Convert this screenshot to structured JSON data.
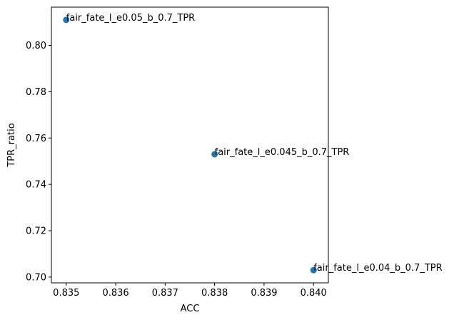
{
  "chart_data": {
    "type": "scatter",
    "title": "",
    "xlabel": "ACC",
    "ylabel": "TPR_ratio",
    "xlim": [
      0.8347,
      0.8403
    ],
    "ylim": [
      0.6975,
      0.8165
    ],
    "x_ticks": [
      0.835,
      0.836,
      0.837,
      0.838,
      0.839,
      0.84
    ],
    "x_tick_labels": [
      "0.835",
      "0.836",
      "0.837",
      "0.838",
      "0.839",
      "0.840"
    ],
    "y_ticks": [
      0.7,
      0.72,
      0.74,
      0.76,
      0.78,
      0.8
    ],
    "y_tick_labels": [
      "0.70",
      "0.72",
      "0.74",
      "0.76",
      "0.78",
      "0.80"
    ],
    "grid": false,
    "point_color": "#1f77b4",
    "points": [
      {
        "x": 0.835,
        "y": 0.811,
        "label": "fair_fate_l_e0.05_b_0.7_TPR"
      },
      {
        "x": 0.838,
        "y": 0.753,
        "label": "fair_fate_l_e0.045_b_0.7_TPR"
      },
      {
        "x": 0.84,
        "y": 0.703,
        "label": "fair_fate_l_e0.04_b_0.7_TPR"
      }
    ]
  }
}
